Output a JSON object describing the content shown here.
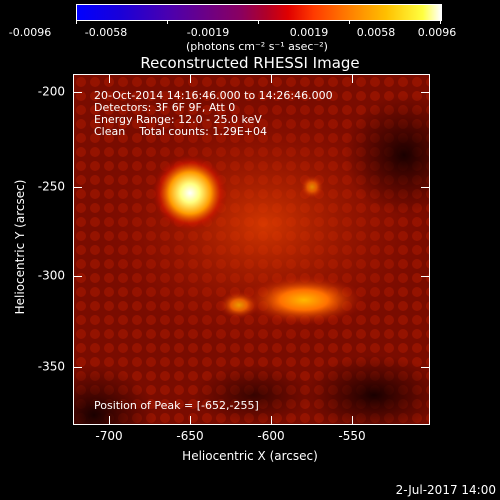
{
  "colorbar": {
    "ticks": [
      "-0.0096",
      "-0.0058",
      "-0.0019",
      "0.0019",
      "0.0058",
      "0.0096"
    ],
    "unit_label": "(photons cm⁻² s⁻¹ asec⁻²)"
  },
  "title": "Reconstructed RHESSI Image",
  "info": {
    "time_range": "20-Oct-2014 14:16:46.000 to 14:26:46.000",
    "detectors": "Detectors: 3F 6F 9F, Att 0",
    "energy": "Energy Range: 12.0 - 25.0 keV",
    "clean": "Clean    Total counts: 1.29E+04",
    "peak": "Position of Peak = [-652,-255]"
  },
  "x_axis": {
    "label": "Heliocentric X (arcsec)",
    "ticks": [
      "-700",
      "-650",
      "-600",
      "-550"
    ]
  },
  "y_axis": {
    "label": "Heliocentric Y (arcsec)",
    "ticks": [
      "-200",
      "-250",
      "-300",
      "-350"
    ]
  },
  "footer_date": "2-Jul-2017 14:00"
}
